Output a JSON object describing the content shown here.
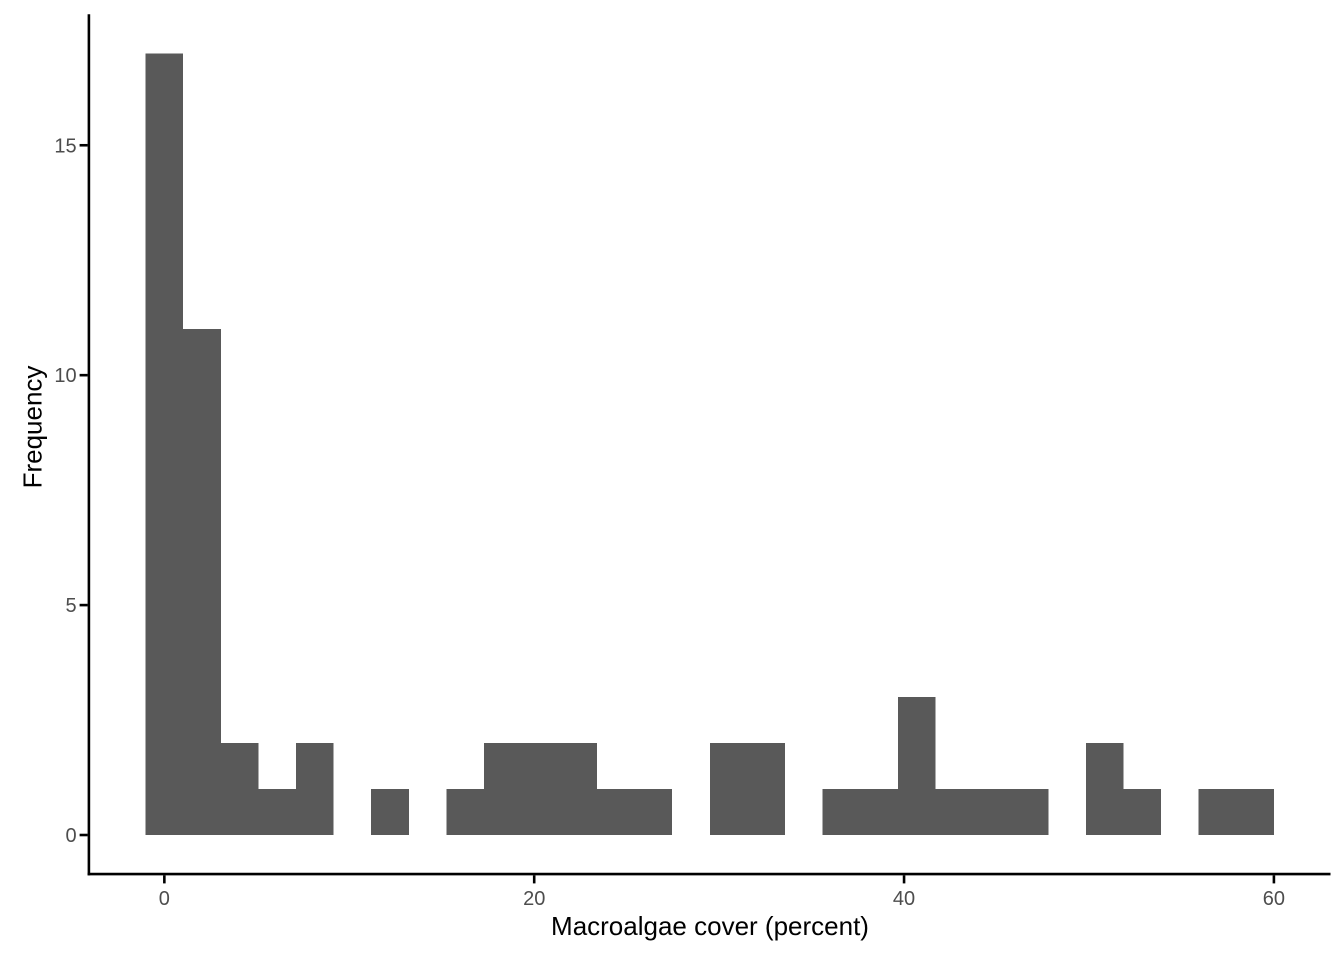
{
  "figure": {
    "xlabel": "Macroalgae cover (percent)",
    "ylabel": "Frequency"
  },
  "chart_data": {
    "type": "histogram",
    "title": "",
    "xlabel": "Macroalgae cover (percent)",
    "ylabel": "Frequency",
    "x_ticks": [
      0,
      20,
      40,
      60
    ],
    "y_ticks": [
      0,
      5,
      10,
      15
    ],
    "xlim": [
      -4.08,
      63.06
    ],
    "ylim": [
      -0.85,
      17.85
    ],
    "grid": false,
    "legend": false,
    "bins": {
      "start": -1.017,
      "width": 2.034,
      "counts": [
        17,
        11,
        2,
        1,
        2,
        0,
        1,
        0,
        1,
        2,
        2,
        2,
        1,
        1,
        0,
        2,
        2,
        0,
        1,
        1,
        3,
        1,
        1,
        1,
        0,
        2,
        1,
        0,
        1,
        1
      ]
    },
    "colors": {
      "bar_fill": "#595959",
      "axis_line": "#000000",
      "tick_label": "#4d4d4d",
      "axis_title": "#000000",
      "background": "#ffffff"
    }
  }
}
